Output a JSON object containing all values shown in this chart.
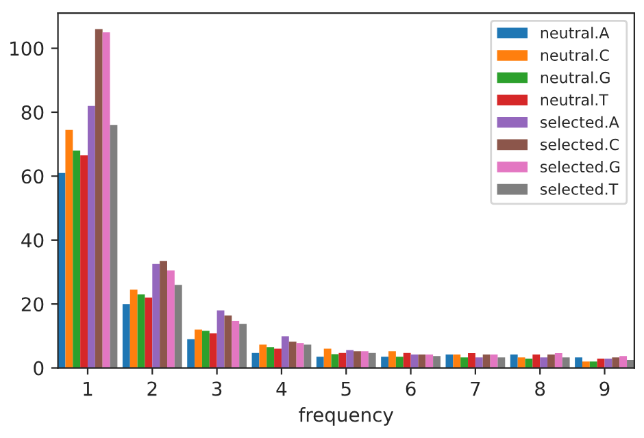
{
  "chart_data": {
    "type": "bar",
    "xlabel": "frequency",
    "categories": [
      "1",
      "2",
      "3",
      "4",
      "5",
      "6",
      "7",
      "8",
      "9"
    ],
    "series": [
      {
        "name": "neutral.A",
        "color": "#1f77b4",
        "values": [
          61,
          20,
          9,
          4.7,
          3.5,
          3.5,
          4.2,
          4.2,
          3.3
        ]
      },
      {
        "name": "neutral.C",
        "color": "#ff7f0e",
        "values": [
          74.5,
          24.5,
          12,
          7.3,
          6,
          5.2,
          4.2,
          3.3,
          2
        ]
      },
      {
        "name": "neutral.G",
        "color": "#2ca02c",
        "values": [
          68,
          23,
          11.6,
          6.5,
          4.3,
          3.5,
          3.3,
          2.9,
          2
        ]
      },
      {
        "name": "neutral.T",
        "color": "#d62728",
        "values": [
          66.5,
          22,
          10.8,
          6,
          4.7,
          4.7,
          4.6,
          4.2,
          2.9
        ]
      },
      {
        "name": "selected.A",
        "color": "#9467bd",
        "values": [
          82,
          32.5,
          18,
          9.9,
          5.6,
          4.2,
          3.3,
          3.3,
          2.9
        ]
      },
      {
        "name": "selected.C",
        "color": "#8c564b",
        "values": [
          106,
          33.5,
          16.4,
          8.2,
          5.2,
          4.2,
          4.2,
          4.2,
          3.3
        ]
      },
      {
        "name": "selected.G",
        "color": "#e377c2",
        "values": [
          105,
          30.5,
          14.7,
          7.8,
          5.2,
          4.2,
          4.2,
          4.6,
          3.7
        ]
      },
      {
        "name": "selected.T",
        "color": "#7f7f7f",
        "values": [
          76,
          26,
          13.8,
          7.3,
          4.7,
          3.7,
          3.3,
          3.3,
          2.5
        ]
      }
    ],
    "ylim": [
      0,
      111
    ],
    "yticks": [
      0,
      20,
      40,
      60,
      80,
      100
    ],
    "grid": false,
    "legend": "top right"
  }
}
